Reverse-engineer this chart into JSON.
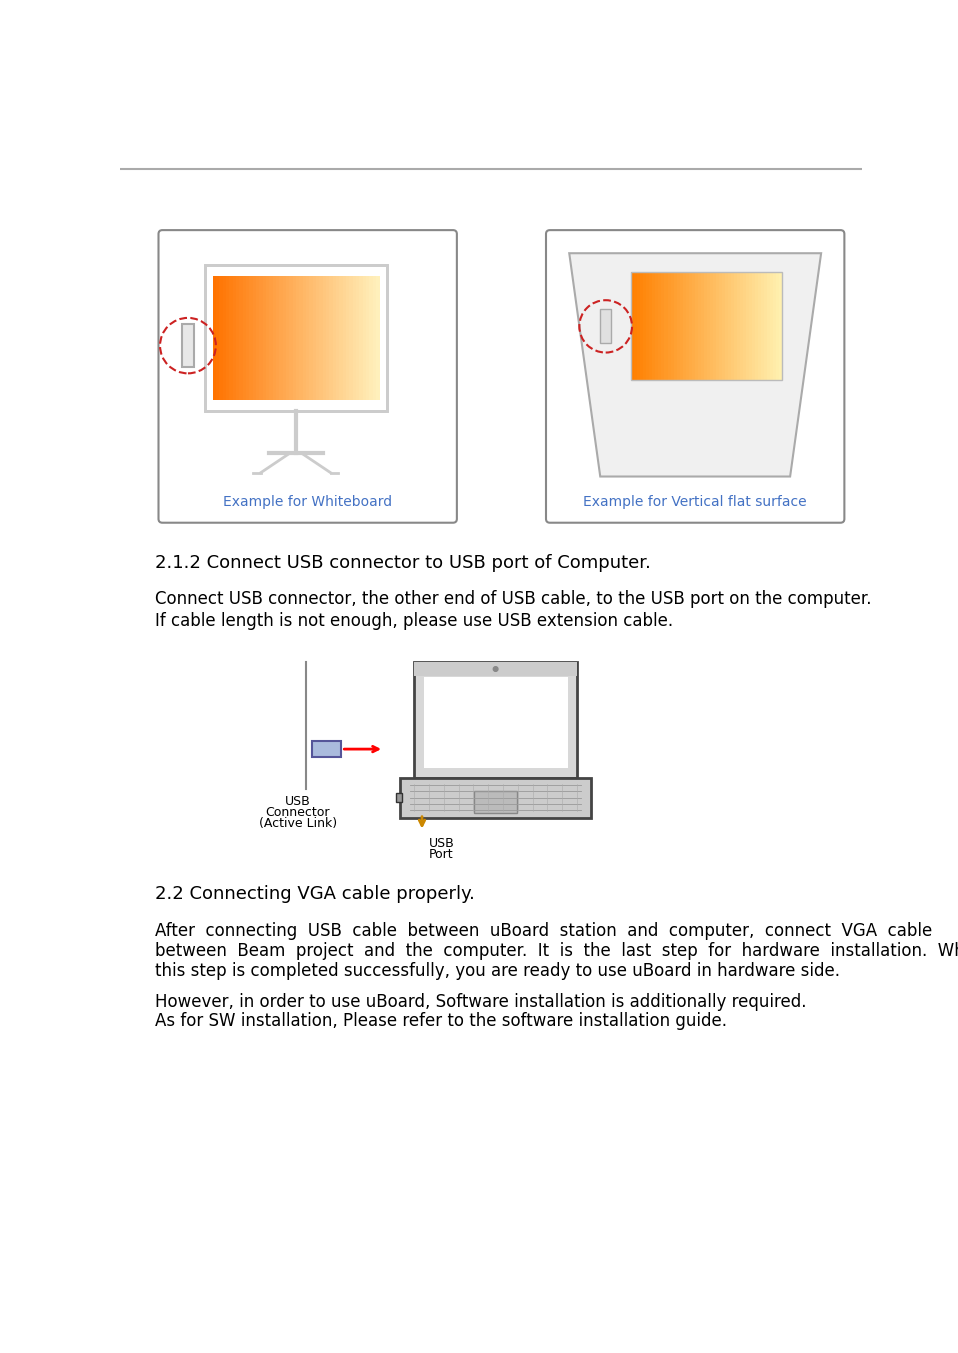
{
  "bg_color": "#ffffff",
  "top_line_color": "#aaaaaa",
  "section_heading_1": "2.1.2 Connect USB connector to USB port of Computer.",
  "section_body_1a": "Connect USB connector, the other end of USB cable, to the USB port on the computer.",
  "section_body_1b": "If cable length is not enough, please use USB extension cable.",
  "section_heading_2": "2.2 Connecting VGA cable properly.",
  "section_body_2a": "After  connecting  USB  cable  between  uBoard  station  and  computer,  connect  VGA  cable",
  "section_body_2b": "between  Beam  project  and  the  computer.  It  is  the  last  step  for  hardware  installation.  When",
  "section_body_2c": "this step is completed successfully, you are ready to use uBoard in hardware side.",
  "section_body_2d": "However, in order to use uBoard, Software installation is additionally required.",
  "section_body_2e": "As for SW installation, Please refer to the software installation guide.",
  "caption_left": "Example for Whiteboard",
  "caption_right": "Example for Vertical flat surface",
  "usb_label1": "USB",
  "usb_label2": "Connector",
  "usb_label3": "(Active Link)",
  "usb_port_label1": "USB",
  "usb_port_label2": "Port",
  "text_color": "#000000",
  "caption_color": "#4472c4",
  "heading_fontsize": 13,
  "body_fontsize": 12,
  "caption_fontsize": 10,
  "label_fontsize": 9
}
